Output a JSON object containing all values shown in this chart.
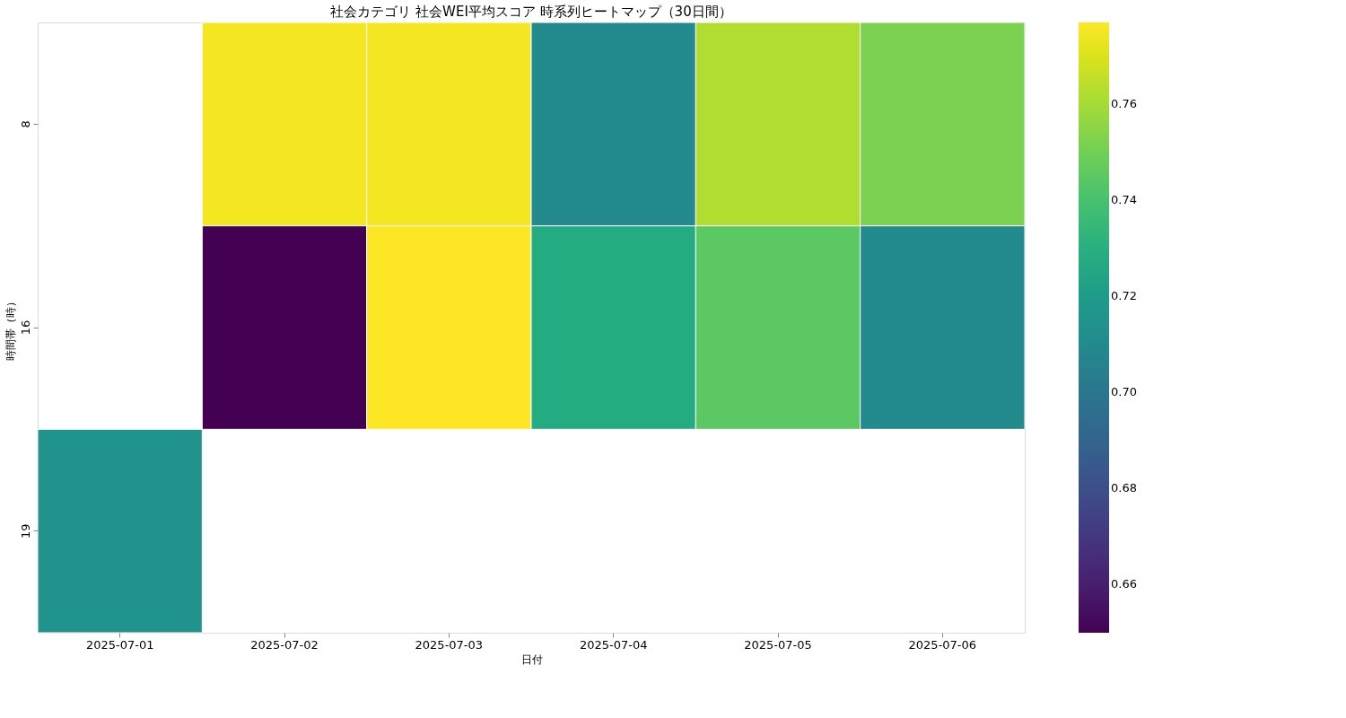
{
  "chart_data": {
    "type": "heatmap",
    "title": "社会カテゴリ 社会WEI平均スコア 時系列ヒートマップ（30日間）",
    "xlabel": "日付",
    "ylabel": "時間帯（時）",
    "categories": [
      "2025-07-01",
      "2025-07-02",
      "2025-07-03",
      "2025-07-04",
      "2025-07-05",
      "2025-07-06"
    ],
    "y_categories": [
      "8",
      "16",
      "19"
    ],
    "cells": [
      [
        null,
        0.775,
        0.775,
        0.71,
        0.762,
        0.752
      ],
      [
        null,
        0.65,
        0.777,
        0.728,
        0.745,
        0.71
      ],
      [
        0.715,
        null,
        null,
        null,
        null,
        null
      ]
    ],
    "clim": [
      0.65,
      0.777
    ],
    "cticks": [
      0.66,
      0.68,
      {
        "value": 0.7,
        "label": "0.70"
      },
      0.72,
      0.74,
      0.76
    ]
  }
}
